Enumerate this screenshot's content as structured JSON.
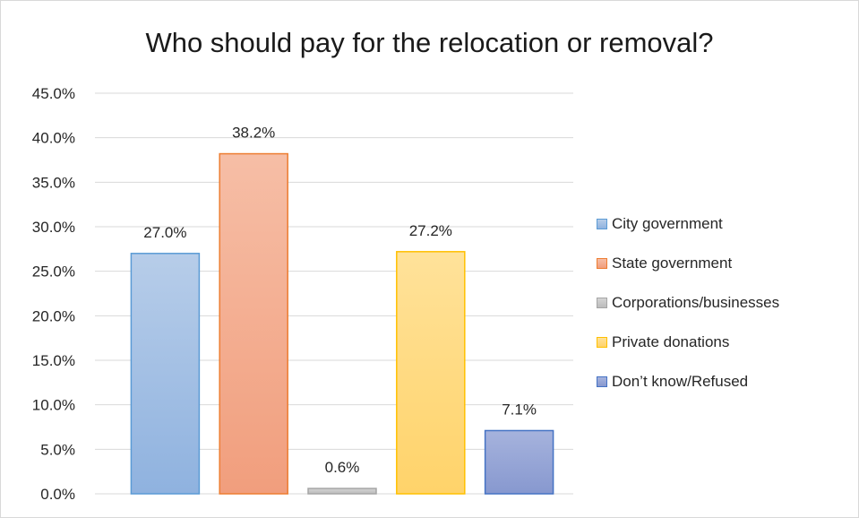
{
  "chart_data": {
    "type": "bar",
    "title": "Who should pay for the relocation or removal?",
    "xlabel": "",
    "ylabel": "",
    "ylim": [
      0,
      45
    ],
    "y_ticks": [
      "0.0%",
      "5.0%",
      "10.0%",
      "15.0%",
      "20.0%",
      "25.0%",
      "30.0%",
      "35.0%",
      "40.0%",
      "45.0%"
    ],
    "grid": true,
    "legend_position": "right",
    "series": [
      {
        "name": "City government",
        "value": 27.0,
        "label": "27.0%",
        "fill_top": "#b7cde9",
        "fill_bottom": "#8fb2df",
        "stroke": "#5b9bd5"
      },
      {
        "name": "State government",
        "value": 38.2,
        "label": "38.2%",
        "fill_top": "#f6bea6",
        "fill_bottom": "#f19e7d",
        "stroke": "#ed7d31"
      },
      {
        "name": "Corporations/businesses",
        "value": 0.6,
        "label": "0.6%",
        "fill_top": "#d4d4d4",
        "fill_bottom": "#bcbcbc",
        "stroke": "#a5a5a5"
      },
      {
        "name": "Private donations",
        "value": 27.2,
        "label": "27.2%",
        "fill_top": "#ffe29a",
        "fill_bottom": "#ffd36a",
        "stroke": "#ffc000"
      },
      {
        "name": "Don’t know/Refused",
        "value": 7.1,
        "label": "7.1%",
        "fill_top": "#a6b3dd",
        "fill_bottom": "#8798cf",
        "stroke": "#4472c4"
      }
    ]
  }
}
